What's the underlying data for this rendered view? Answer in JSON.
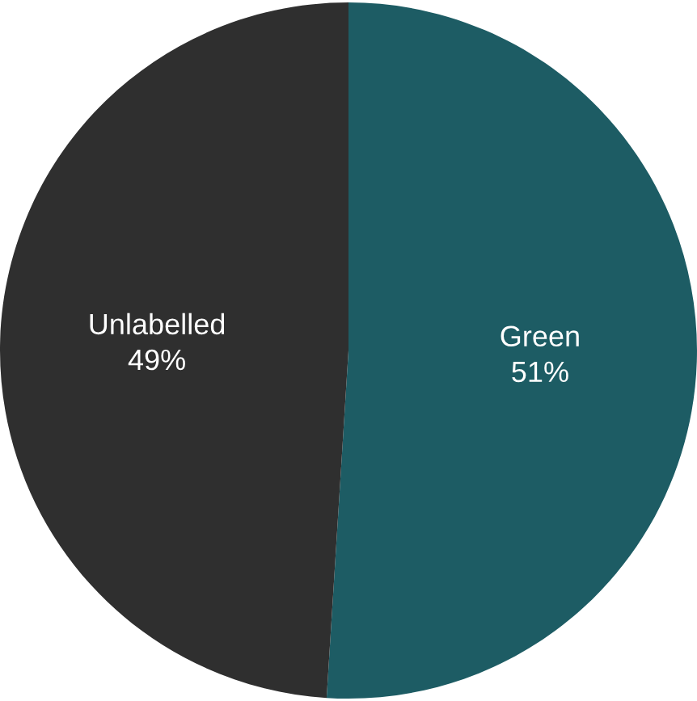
{
  "chart_data": {
    "type": "pie",
    "categories": [
      "Green",
      "Unlabelled"
    ],
    "values": [
      51,
      49
    ],
    "colors": [
      "#1d5c64",
      "#2f2f2f"
    ],
    "value_labels": [
      "51%",
      "49%"
    ]
  }
}
